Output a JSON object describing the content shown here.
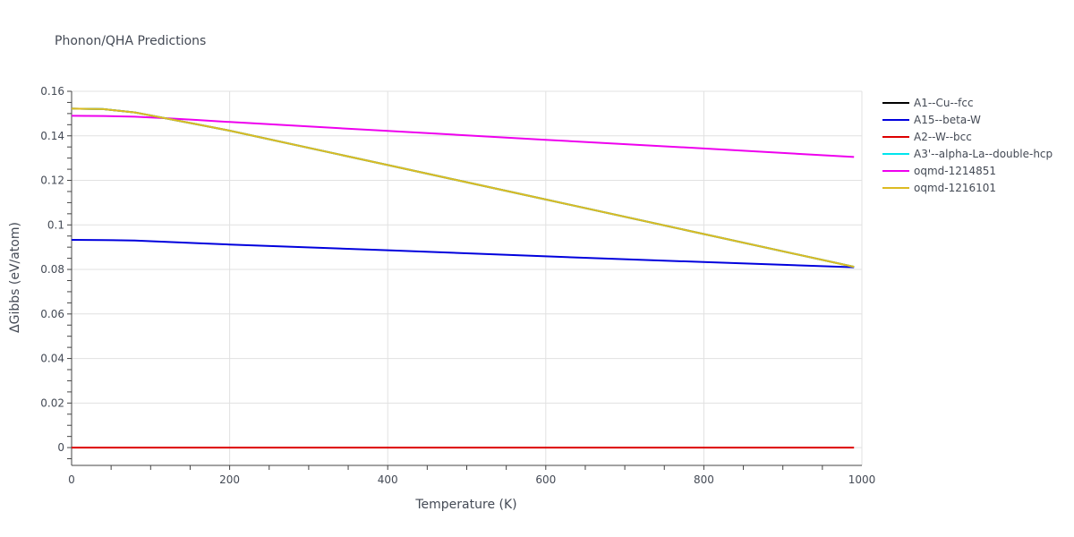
{
  "chart_data": {
    "type": "line",
    "title": "Phonon/QHA Predictions",
    "xlabel": "Temperature (K)",
    "ylabel": "ΔGibbs (eV/atom)",
    "xlim": [
      0,
      1000
    ],
    "ylim": [
      -0.008,
      0.16
    ],
    "x_ticks": [
      0,
      200,
      400,
      600,
      800,
      1000
    ],
    "x_tick_labels": [
      "0",
      "200",
      "400",
      "600",
      "800",
      "1000"
    ],
    "y_ticks": [
      0,
      0.02,
      0.04,
      0.06,
      0.08,
      0.1,
      0.12,
      0.14,
      0.16
    ],
    "y_tick_labels": [
      "0",
      "0.02",
      "0.04",
      "0.06",
      "0.08",
      "0.1",
      "0.12",
      "0.14",
      "0.16"
    ],
    "grid": true,
    "legend_position": "right",
    "series": [
      {
        "name": "A1--Cu--fcc",
        "color": "#000000",
        "x": [
          0,
          40,
          80,
          120,
          160,
          200,
          400,
          600,
          800,
          990
        ],
        "y": [
          0.1522,
          0.152,
          0.1505,
          0.1478,
          0.1451,
          0.1423,
          0.1269,
          0.1114,
          0.0959,
          0.0812
        ]
      },
      {
        "name": "A15--beta-W",
        "color": "#0000dd",
        "x": [
          0,
          40,
          80,
          120,
          160,
          200,
          400,
          600,
          800,
          990
        ],
        "y": [
          0.0933,
          0.0932,
          0.093,
          0.0924,
          0.0918,
          0.0912,
          0.0886,
          0.0859,
          0.0833,
          0.081
        ]
      },
      {
        "name": "A2--W--bcc",
        "color": "#dd0000",
        "x": [
          0,
          990
        ],
        "y": [
          0,
          0
        ]
      },
      {
        "name": "A3'--alpha-La--double-hcp",
        "color": "#00e5ee",
        "x": [
          0,
          40,
          80,
          120,
          160,
          200,
          400,
          600,
          800,
          990
        ],
        "y": [
          0.1522,
          0.152,
          0.1505,
          0.1478,
          0.1451,
          0.1423,
          0.1269,
          0.1114,
          0.0959,
          0.0812
        ]
      },
      {
        "name": "oqmd-1214851",
        "color": "#ee00ee",
        "x": [
          0,
          40,
          80,
          120,
          160,
          200,
          400,
          600,
          800,
          990
        ],
        "y": [
          0.149,
          0.1489,
          0.1486,
          0.1479,
          0.1471,
          0.1462,
          0.1422,
          0.1382,
          0.1343,
          0.1305
        ]
      },
      {
        "name": "oqmd-1216101",
        "color": "#ddbb22",
        "x": [
          0,
          40,
          80,
          120,
          160,
          200,
          400,
          600,
          800,
          990
        ],
        "y": [
          0.1522,
          0.152,
          0.1505,
          0.1478,
          0.1451,
          0.1423,
          0.1269,
          0.1114,
          0.0959,
          0.0812
        ]
      }
    ]
  }
}
